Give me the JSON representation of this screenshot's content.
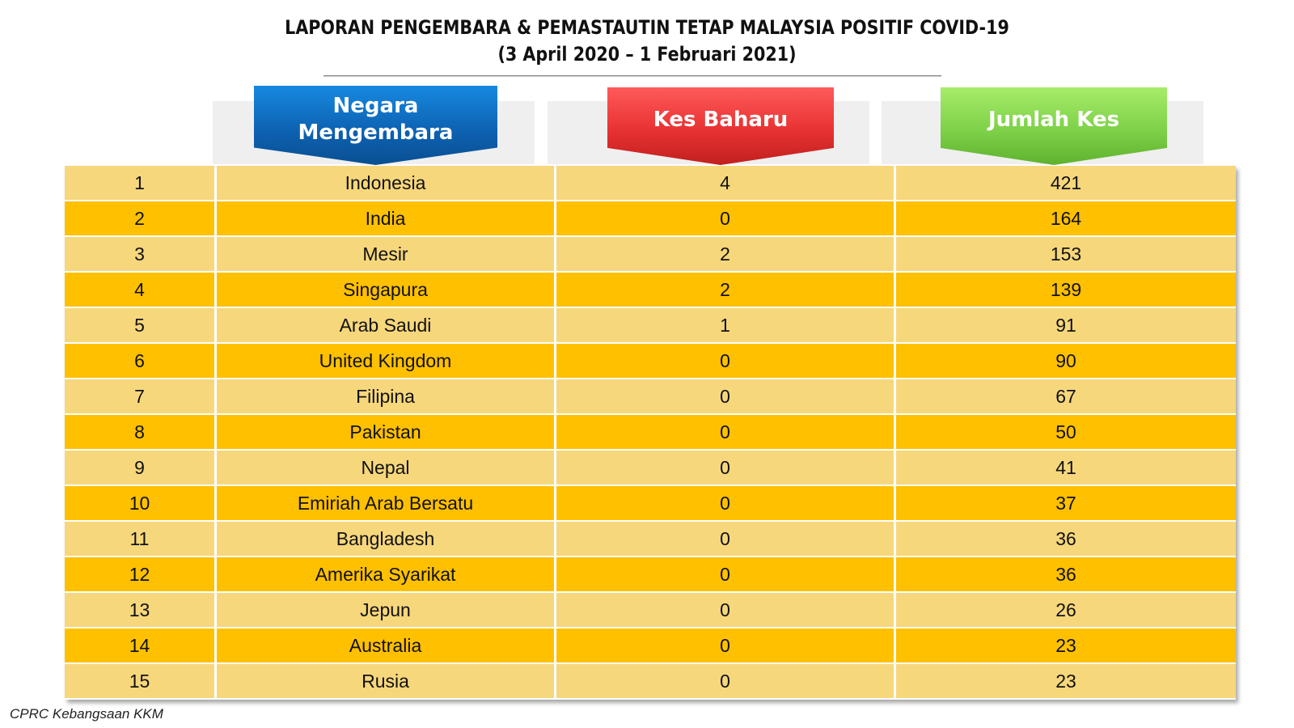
{
  "title": {
    "line1": "LAPORAN PENGEMBARA & PEMASTAUTIN TETAP MALAYSIA POSITIF COVID-19",
    "line2": "(3 April 2020 – 1 Februari 2021)"
  },
  "colors": {
    "header_negara": "#0e63b3",
    "header_kes_baharu": "#e83232",
    "header_jumlah_kes": "#7ed148",
    "row_light": "#f7d77c",
    "row_dark": "#ffc000"
  },
  "chart_data": {
    "type": "table",
    "columns": [
      "",
      "Negara Mengembara",
      "Kes Baharu",
      "Jumlah Kes"
    ],
    "header_lines": {
      "negara_1": "Negara",
      "negara_2": "Mengembara"
    },
    "rows": [
      {
        "no": "1",
        "country": "Indonesia",
        "new": "4",
        "total": "421"
      },
      {
        "no": "2",
        "country": "India",
        "new": "0",
        "total": "164"
      },
      {
        "no": "3",
        "country": "Mesir",
        "new": "2",
        "total": "153"
      },
      {
        "no": "4",
        "country": "Singapura",
        "new": "2",
        "total": "139"
      },
      {
        "no": "5",
        "country": "Arab Saudi",
        "new": "1",
        "total": "91"
      },
      {
        "no": "6",
        "country": "United Kingdom",
        "new": "0",
        "total": "90"
      },
      {
        "no": "7",
        "country": "Filipina",
        "new": "0",
        "total": "67"
      },
      {
        "no": "8",
        "country": "Pakistan",
        "new": "0",
        "total": "50"
      },
      {
        "no": "9",
        "country": "Nepal",
        "new": "0",
        "total": "41"
      },
      {
        "no": "10",
        "country": "Emiriah Arab Bersatu",
        "new": "0",
        "total": "37"
      },
      {
        "no": "11",
        "country": "Bangladesh",
        "new": "0",
        "total": "36"
      },
      {
        "no": "12",
        "country": "Amerika Syarikat",
        "new": "0",
        "total": "36"
      },
      {
        "no": "13",
        "country": "Jepun",
        "new": "0",
        "total": "26"
      },
      {
        "no": "14",
        "country": "Australia",
        "new": "0",
        "total": "23"
      },
      {
        "no": "15",
        "country": "Rusia",
        "new": "0",
        "total": "23"
      }
    ]
  },
  "source": "CPRC Kebangsaan KKM"
}
